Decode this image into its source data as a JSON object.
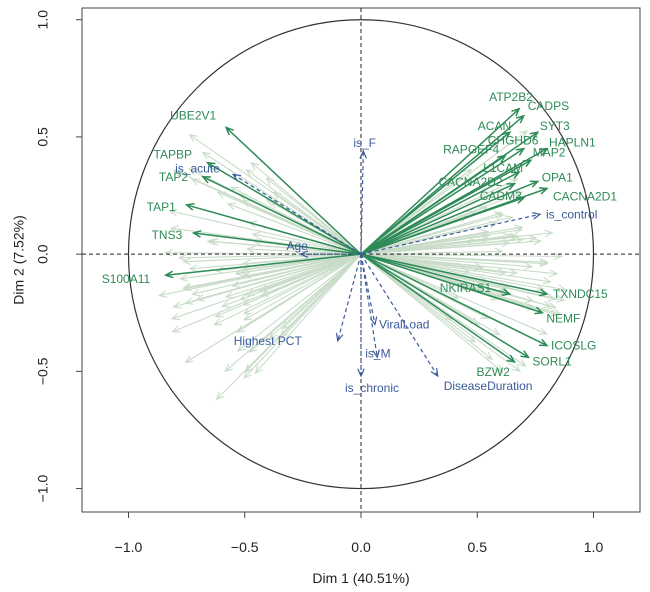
{
  "chart_data": {
    "type": "scatter",
    "subtype": "pca-correlation-circle",
    "title": "",
    "xlabel": "Dim 1 (40.51%)",
    "ylabel": "Dim 2 (7.52%)",
    "xlim": [
      -1.2,
      1.2
    ],
    "ylim": [
      -1.1,
      1.05
    ],
    "xticks": [
      -1.0,
      -0.5,
      0.0,
      0.5,
      1.0
    ],
    "yticks": [
      -1.0,
      -0.5,
      0.0,
      0.5,
      1.0
    ],
    "xtick_labels": [
      "−1.0",
      "−0.5",
      "0.0",
      "0.5",
      "1.0"
    ],
    "ytick_labels": [
      "−1.0",
      "−0.5",
      "0.0",
      "0.5",
      "1.0"
    ],
    "grid": false,
    "colors": {
      "gene": "#2e8b57",
      "gene_faint": "#c8dcc8",
      "supplementary": "#3a5a9a",
      "circle": "#333333",
      "frame": "#444444"
    },
    "series": [
      {
        "name": "",
        "kind": "gene",
        "points": [
          {
            "label": "ATP2B2",
            "x": 0.68,
            "y": 0.62
          },
          {
            "label": "CADPS",
            "x": 0.7,
            "y": 0.59
          },
          {
            "label": "ACAN",
            "x": 0.64,
            "y": 0.52
          },
          {
            "label": "SYT3",
            "x": 0.76,
            "y": 0.52
          },
          {
            "label": "CHGHD6",
            "x": 0.7,
            "y": 0.45
          },
          {
            "label": "HAPLN1",
            "x": 0.8,
            "y": 0.45
          },
          {
            "label": "RAPGEF4",
            "x": 0.62,
            "y": 0.42
          },
          {
            "label": "MAP2",
            "x": 0.73,
            "y": 0.4
          },
          {
            "label": "L1CAM",
            "x": 0.68,
            "y": 0.35
          },
          {
            "label": "CACNA2D2",
            "x": 0.66,
            "y": 0.3
          },
          {
            "label": "OPA1",
            "x": 0.76,
            "y": 0.31
          },
          {
            "label": "CACNA2D1",
            "x": 0.8,
            "y": 0.28
          },
          {
            "label": "CADM3",
            "x": 0.7,
            "y": 0.24
          },
          {
            "label": "NKIRAS1",
            "x": 0.64,
            "y": -0.17
          },
          {
            "label": "TXNDC15",
            "x": 0.8,
            "y": -0.17
          },
          {
            "label": "NEMF",
            "x": 0.78,
            "y": -0.25
          },
          {
            "label": "ICOSLG",
            "x": 0.8,
            "y": -0.39
          },
          {
            "label": "SORL1",
            "x": 0.72,
            "y": -0.44
          },
          {
            "label": "BZW2",
            "x": 0.66,
            "y": -0.46
          },
          {
            "label": "UBE2V1",
            "x": -0.58,
            "y": 0.54
          },
          {
            "label": "TAPBP",
            "x": -0.66,
            "y": 0.39
          },
          {
            "label": "TAP2",
            "x": -0.68,
            "y": 0.33
          },
          {
            "label": "TAP1",
            "x": -0.75,
            "y": 0.21
          },
          {
            "label": "TNS3",
            "x": -0.72,
            "y": 0.09
          },
          {
            "label": "S100A11",
            "x": -0.84,
            "y": -0.09
          }
        ]
      },
      {
        "name": "",
        "kind": "supplementary",
        "points": [
          {
            "label": "is_F",
            "x": 0.01,
            "y": 0.44
          },
          {
            "label": "is_acute",
            "x": -0.55,
            "y": 0.34
          },
          {
            "label": "Age",
            "x": -0.26,
            "y": 0.0
          },
          {
            "label": "is_control",
            "x": 0.77,
            "y": 0.17
          },
          {
            "label": "ViralLoad",
            "x": 0.06,
            "y": -0.3
          },
          {
            "label": "Highest PCT",
            "x": -0.1,
            "y": -0.37
          },
          {
            "label": "is_M",
            "x": 0.07,
            "y": -0.44
          },
          {
            "label": "is_chronic",
            "x": 0.0,
            "y": -0.52
          },
          {
            "label": "DiseaseDuration",
            "x": 0.33,
            "y": -0.52
          }
        ]
      }
    ]
  }
}
